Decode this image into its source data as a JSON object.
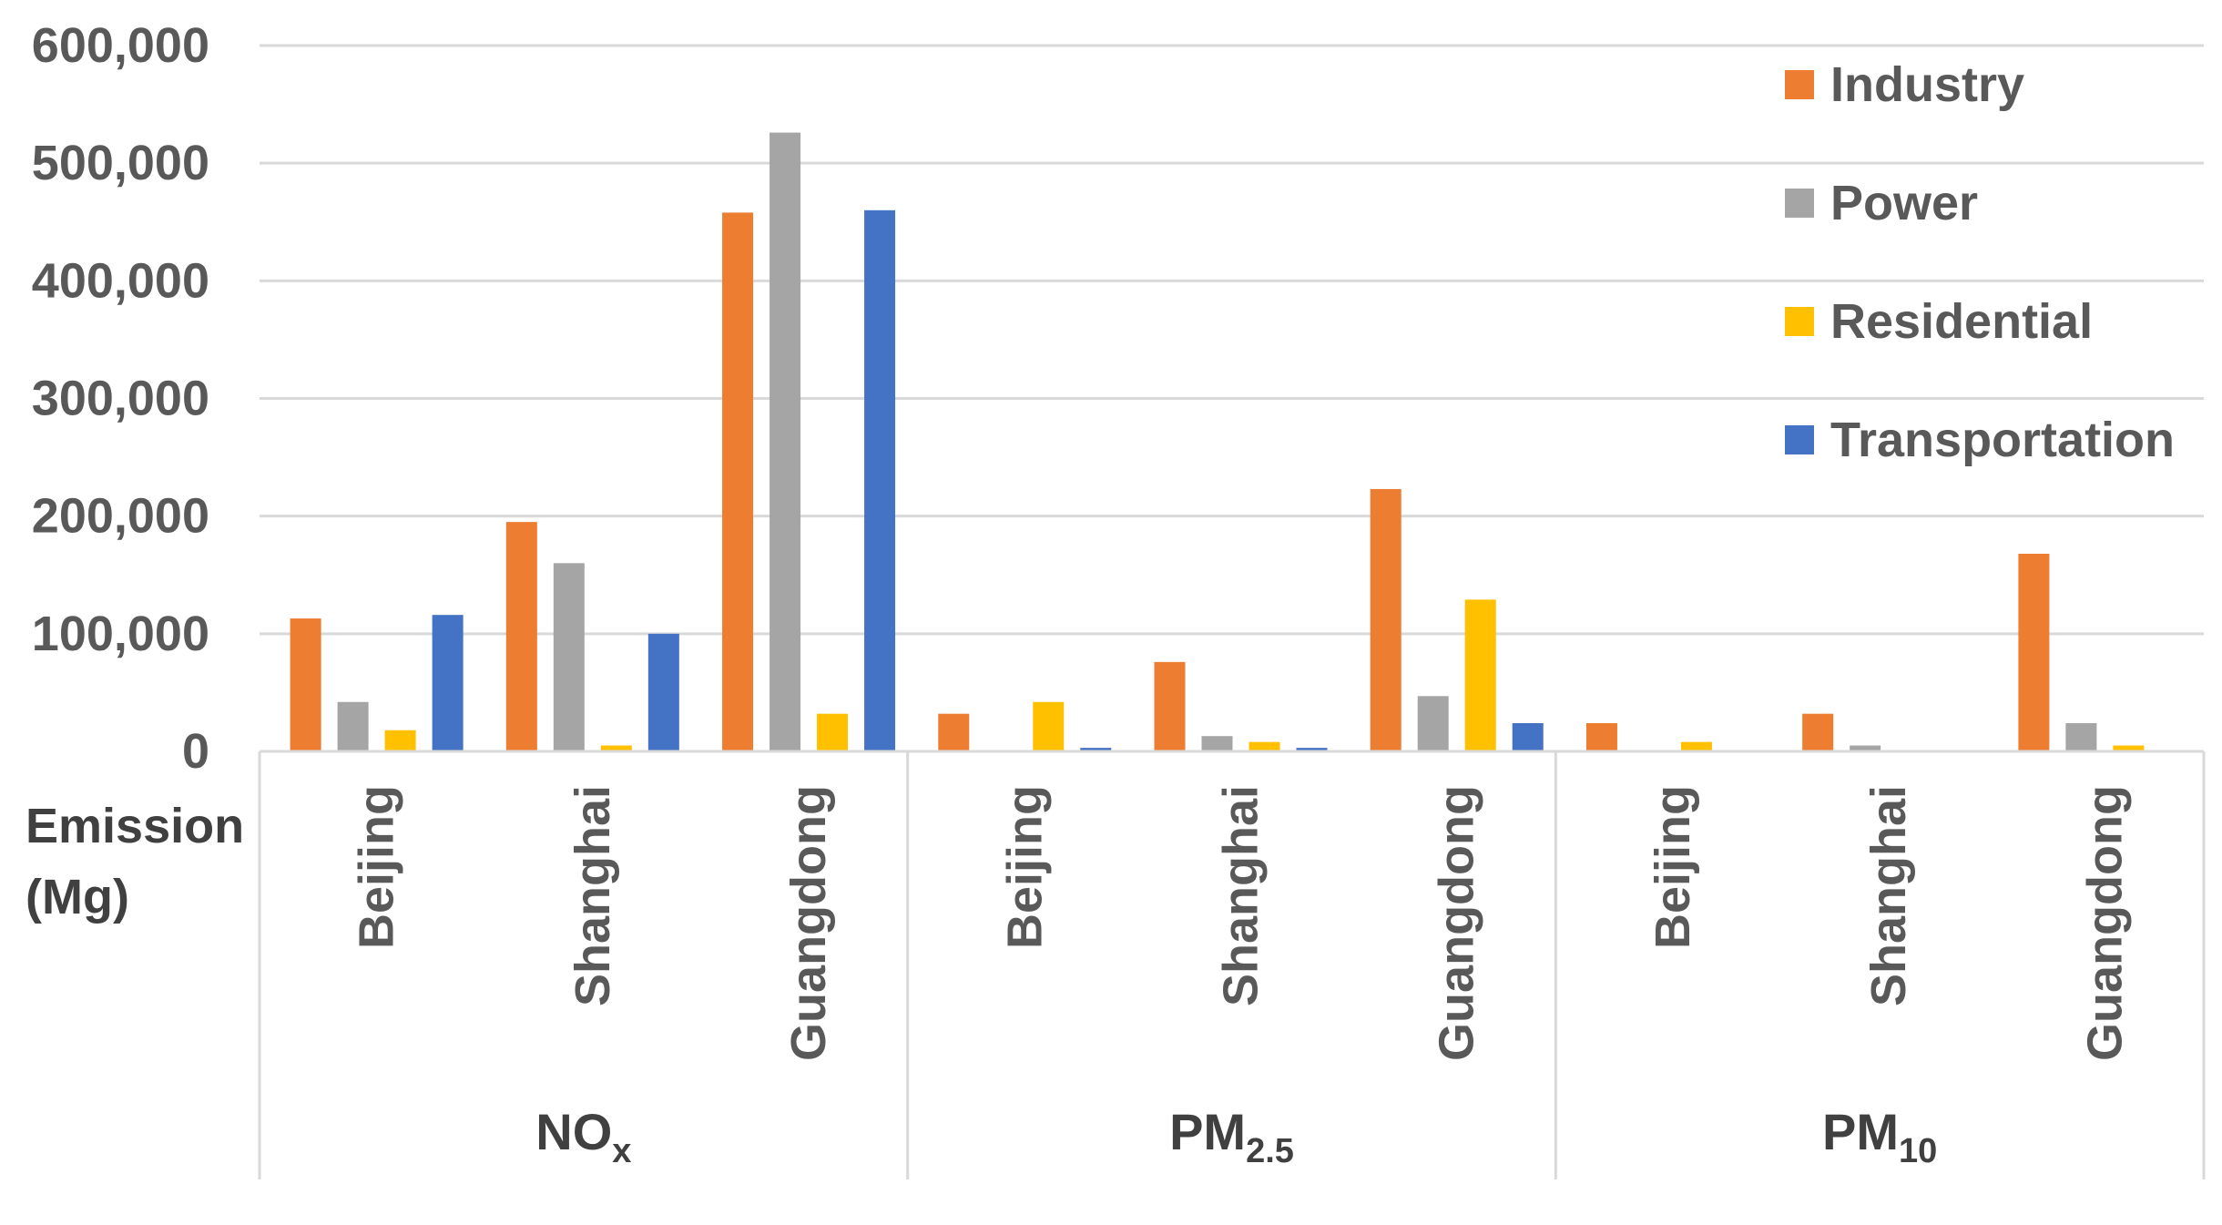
{
  "chart_data": {
    "type": "bar",
    "ylabel_lines": [
      "Emission",
      "(Mg)"
    ],
    "ylim": [
      0,
      600000
    ],
    "yticks": [
      {
        "value": 0,
        "label": "0"
      },
      {
        "value": 100000,
        "label": "100,000"
      },
      {
        "value": 200000,
        "label": "200,000"
      },
      {
        "value": 300000,
        "label": "300,000"
      },
      {
        "value": 400000,
        "label": "400,000"
      },
      {
        "value": 500000,
        "label": "500,000"
      },
      {
        "value": 600000,
        "label": "600,000"
      }
    ],
    "grid": true,
    "legend_position": "top-right",
    "groups": [
      {
        "label": "NO",
        "subscript": "x",
        "categories": [
          "Beijing",
          "Shanghai",
          "Guangdong"
        ]
      },
      {
        "label": "PM",
        "subscript": "2.5",
        "categories": [
          "Beijing",
          "Shanghai",
          "Guangdong"
        ]
      },
      {
        "label": "PM",
        "subscript": "10",
        "categories": [
          "Beijing",
          "Shanghai",
          "Guangdong"
        ]
      }
    ],
    "series": [
      {
        "name": "Industry",
        "color": "#ed7d31",
        "values": [
          113000,
          195000,
          458000,
          32000,
          76000,
          223000,
          24000,
          32000,
          168000
        ]
      },
      {
        "name": "Power",
        "color": "#a5a5a5",
        "values": [
          42000,
          160000,
          526000,
          0,
          13000,
          47000,
          0,
          5000,
          24000
        ]
      },
      {
        "name": "Residential",
        "color": "#ffc000",
        "values": [
          18000,
          5000,
          32000,
          42000,
          8000,
          129000,
          8000,
          0,
          5000
        ]
      },
      {
        "name": "Transportation",
        "color": "#4472c4",
        "values": [
          116000,
          100000,
          460000,
          3000,
          3000,
          24000,
          0,
          0,
          0
        ]
      }
    ]
  }
}
